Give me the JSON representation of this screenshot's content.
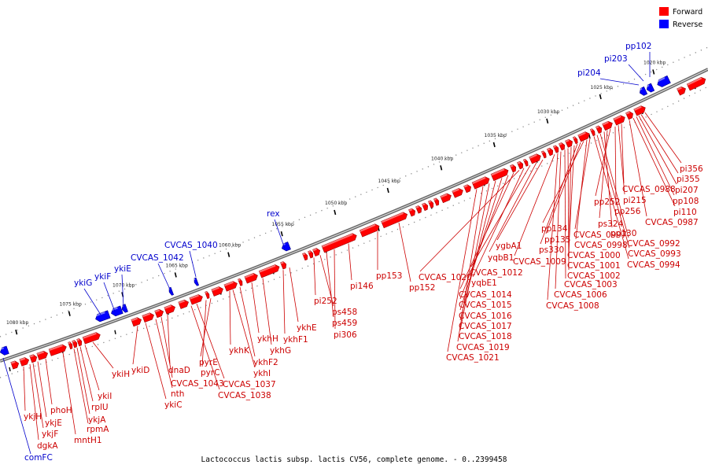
{
  "caption": "Lactococcus lactis subsp. lactis CV56, complete genome. - 0..2399458",
  "legend": {
    "forward_label": "Forward",
    "reverse_label": "Reverse",
    "forward_color": "#ff0000",
    "reverse_color": "#0000ff"
  },
  "colors": {
    "forward_line": "#cc0000",
    "forward_text": "#cc0000",
    "reverse_text": "#0000cc"
  },
  "scale_ticks": [
    {
      "kbp": 1020,
      "label": "1020 kbp"
    },
    {
      "kbp": 1025,
      "label": "1025 kbp"
    },
    {
      "kbp": 1030,
      "label": "1030 kbp"
    },
    {
      "kbp": 1035,
      "label": "1035 kbp"
    },
    {
      "kbp": 1040,
      "label": "1040 kbp"
    },
    {
      "kbp": 1045,
      "label": "1045 kbp"
    },
    {
      "kbp": 1050,
      "label": "1050 kbp"
    },
    {
      "kbp": 1055,
      "label": "1055 kbp"
    },
    {
      "kbp": 1060,
      "label": "1060 kbp"
    },
    {
      "kbp": 1065,
      "label": "1065 kbp"
    },
    {
      "kbp": 1070,
      "label": "1070 kbp"
    },
    {
      "kbp": 1075,
      "label": "1075 kbp"
    },
    {
      "kbp": 1080,
      "label": "1080 kbp"
    }
  ],
  "reverse_labels": [
    "pp102",
    "pi203",
    "pi204",
    "rex",
    "CVCAS_1040",
    "CVCAS_1042",
    "ykiE",
    "ykiF",
    "ykiG",
    "comFC"
  ],
  "forward_labels": [
    "pi356",
    "pi355",
    "pi207",
    "pp108",
    "pi110",
    "CVCAS_0987",
    "CVCAS_0988",
    "pi215",
    "pp256",
    "pp252",
    "ps324",
    "pp130",
    "CVCAS_0992",
    "CVCAS_0993",
    "CVCAS_0994",
    "CVCAS_0997",
    "CVCAS_0998",
    "pp134",
    "pp135",
    "ps330",
    "CVCAS_1000",
    "CVCAS_1001",
    "CVCAS_1002",
    "CVCAS_1003",
    "CVCAS_1006",
    "CVCAS_1008",
    "CVCAS_1009",
    "ygbA1",
    "yqbB1",
    "CVCAS_1012",
    "yqbE1",
    "CVCAS_1020",
    "CVCAS_1014",
    "CVCAS_1015",
    "CVCAS_1016",
    "CVCAS_1017",
    "CVCAS_1018",
    "CVCAS_1019",
    "CVCAS_1021",
    "pp153",
    "pp152",
    "pi146",
    "pi252",
    "ps458",
    "ps459",
    "pi306",
    "ykhE",
    "ykhF1",
    "ykhH",
    "ykhG",
    "ykhK",
    "ykhF2",
    "ykhI",
    "pyrE",
    "pyrC",
    "CVCAS_1037",
    "CVCAS_1038",
    "dnaD",
    "CVCAS_1043",
    "nth",
    "ykiC",
    "ykiD",
    "ykiH",
    "ykiI",
    "rplU",
    "ykjA",
    "rpmA",
    "mntH1",
    "phoH",
    "ykjE",
    "ykjF",
    "ykjH",
    "dgkA"
  ]
}
